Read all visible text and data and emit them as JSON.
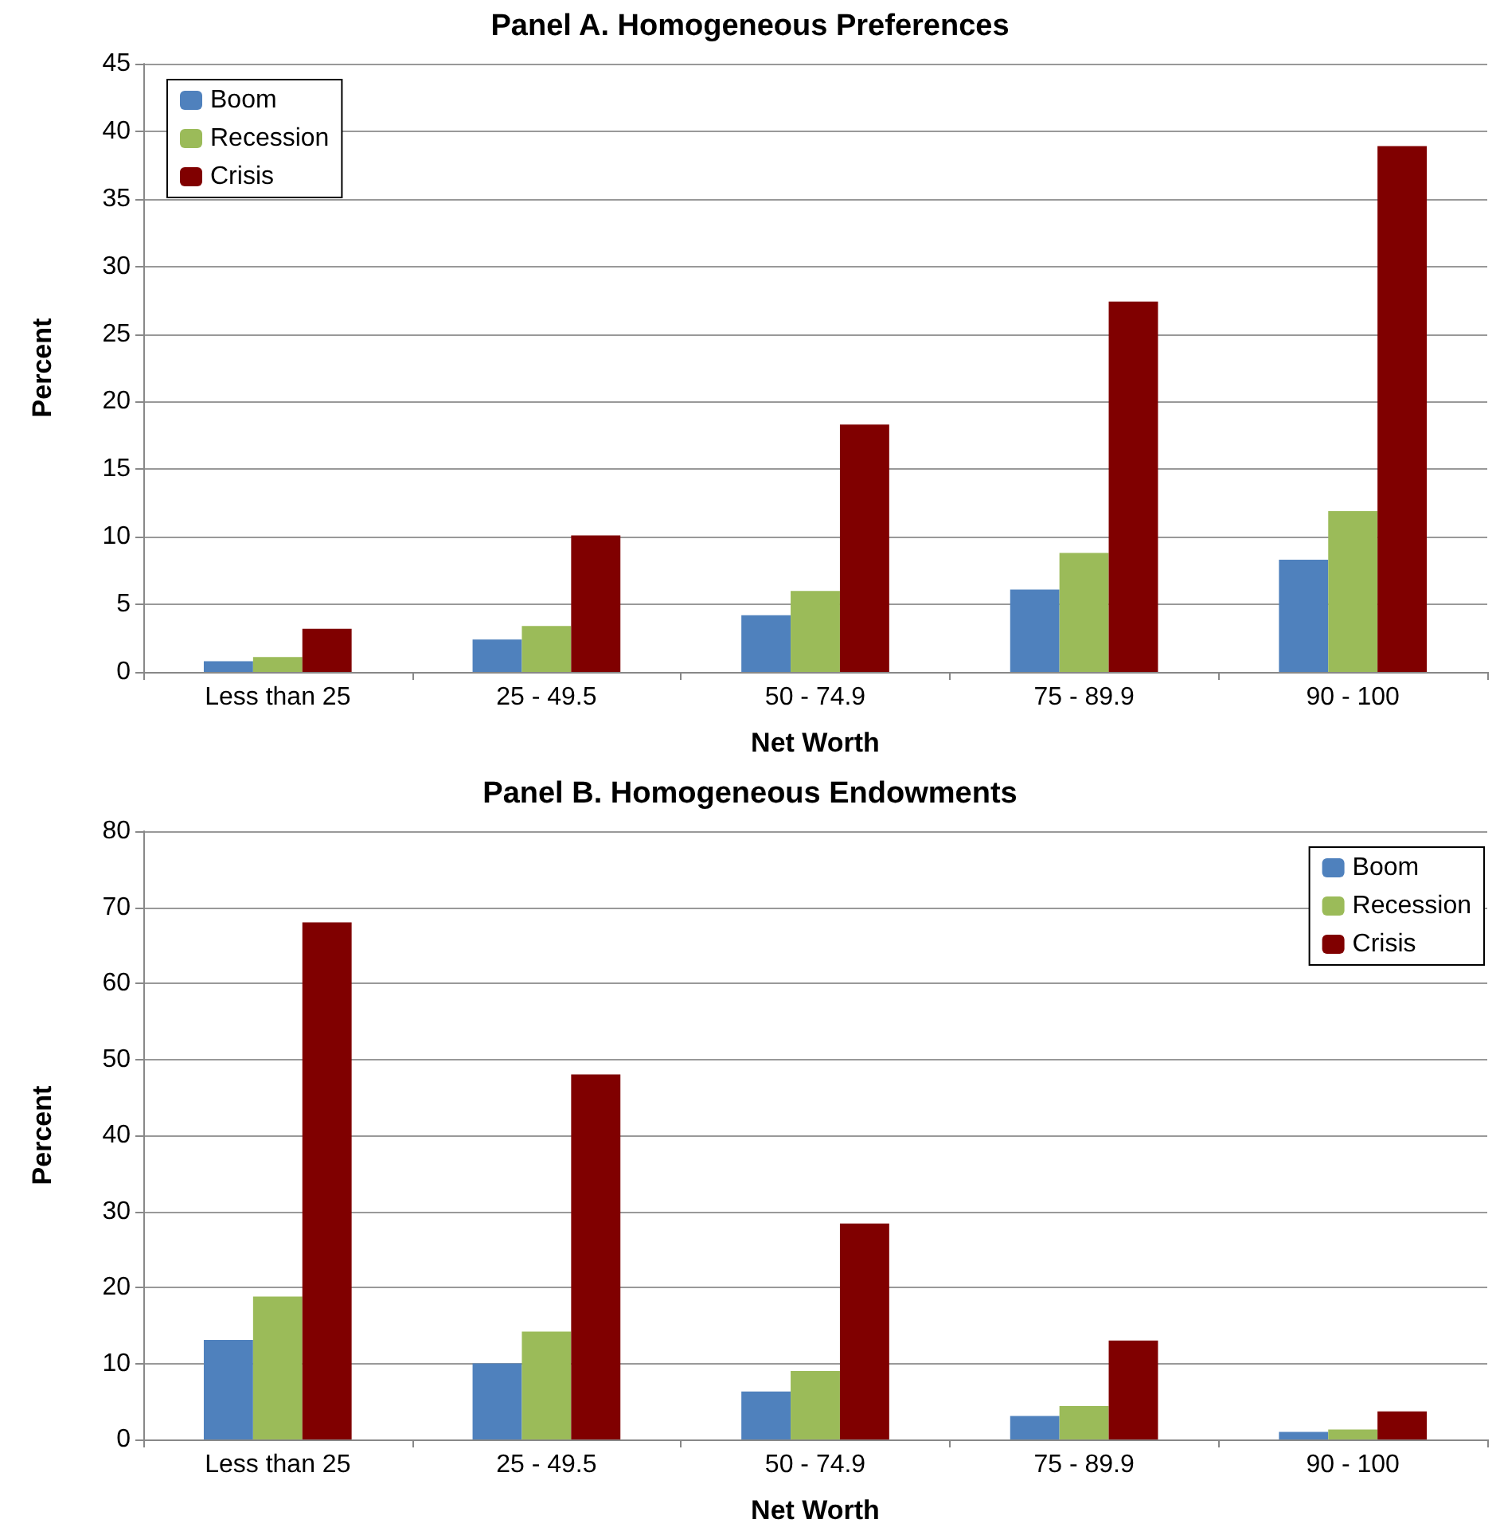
{
  "chart_data": [
    {
      "type": "bar",
      "title": "Panel A. Homogeneous Preferences",
      "xlabel": "Net Worth",
      "ylabel": "Percent",
      "categories": [
        "Less than 25",
        "25 - 49.5",
        "50 - 74.9",
        "75 - 89.9",
        "90 - 100"
      ],
      "series": [
        {
          "name": "Boom",
          "color": "#4f81bd",
          "values": [
            0.8,
            2.4,
            4.2,
            6.1,
            8.3
          ]
        },
        {
          "name": "Recession",
          "color": "#9bbb59",
          "values": [
            1.1,
            3.4,
            6.0,
            8.8,
            11.9
          ]
        },
        {
          "name": "Crisis",
          "color": "#800000",
          "values": [
            3.2,
            10.1,
            18.3,
            27.4,
            38.9
          ]
        }
      ],
      "ylim": [
        0,
        45
      ],
      "yticks": [
        0,
        5,
        10,
        15,
        20,
        25,
        30,
        35,
        40,
        45
      ],
      "grid": "y",
      "legend": "top left"
    },
    {
      "type": "bar",
      "title": "Panel B. Homogeneous Endowments",
      "xlabel": "Net Worth",
      "ylabel": "Percent",
      "categories": [
        "Less than 25",
        "25 - 49.5",
        "50 - 74.9",
        "75 - 89.9",
        "90 - 100"
      ],
      "series": [
        {
          "name": "Boom",
          "color": "#4f81bd",
          "values": [
            13.1,
            10.0,
            6.3,
            3.1,
            1.0
          ]
        },
        {
          "name": "Recession",
          "color": "#9bbb59",
          "values": [
            18.8,
            14.2,
            9.0,
            4.4,
            1.3
          ]
        },
        {
          "name": "Crisis",
          "color": "#800000",
          "values": [
            68,
            48,
            28.4,
            13,
            3.7
          ]
        }
      ],
      "ylim": [
        0,
        80
      ],
      "yticks": [
        0,
        10,
        20,
        30,
        40,
        50,
        60,
        70,
        80
      ],
      "grid": "y",
      "legend": "top right"
    }
  ]
}
